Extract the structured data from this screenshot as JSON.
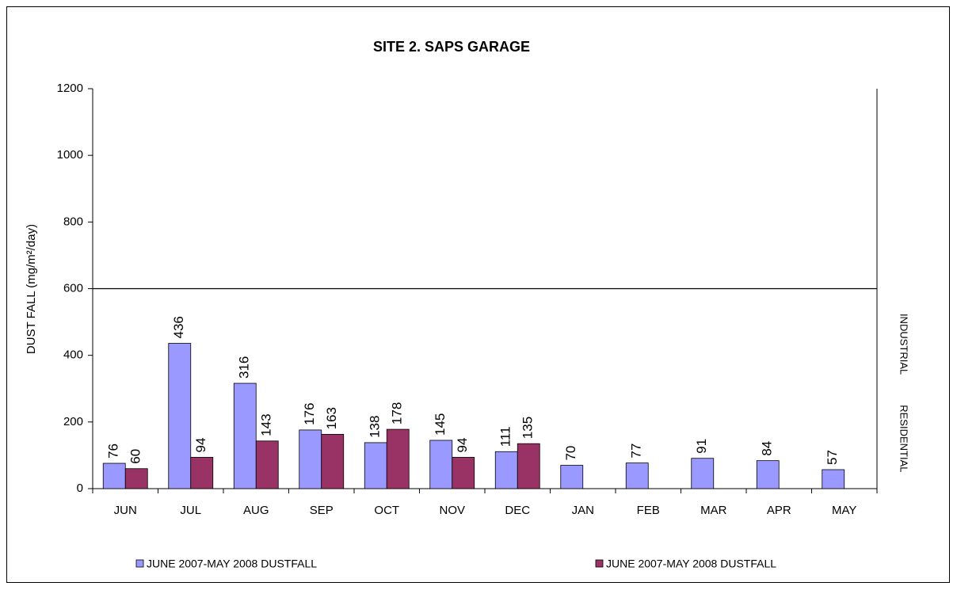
{
  "chart_data": {
    "type": "bar",
    "title": "SITE 2. SAPS GARAGE",
    "y_label": "DUST FALL  (mg/m²/day)",
    "categories": [
      "JUN",
      "JUL",
      "AUG",
      "SEP",
      "OCT",
      "NOV",
      "DEC",
      "JAN",
      "FEB",
      "MAR",
      "APR",
      "MAY"
    ],
    "series": [
      {
        "name": "JUNE 2007-MAY 2008 DUSTFALL",
        "color": "#9999ff",
        "values": [
          76,
          436,
          316,
          176,
          138,
          145,
          111,
          70,
          77,
          91,
          84,
          57
        ]
      },
      {
        "name": "JUNE 2007-MAY 2008 DUSTFALL",
        "color": "#993366",
        "values": [
          60,
          94,
          143,
          163,
          178,
          94,
          135,
          null,
          null,
          null,
          null,
          null
        ]
      }
    ],
    "ylim": [
      0,
      1200
    ],
    "yticks": [
      0,
      200,
      400,
      600,
      800,
      1000,
      1200
    ],
    "reference_line": 600,
    "zone_labels": [
      "INDUSTRIAL",
      "RESIDENTIAL"
    ],
    "legend": "bottom",
    "grid": false
  }
}
